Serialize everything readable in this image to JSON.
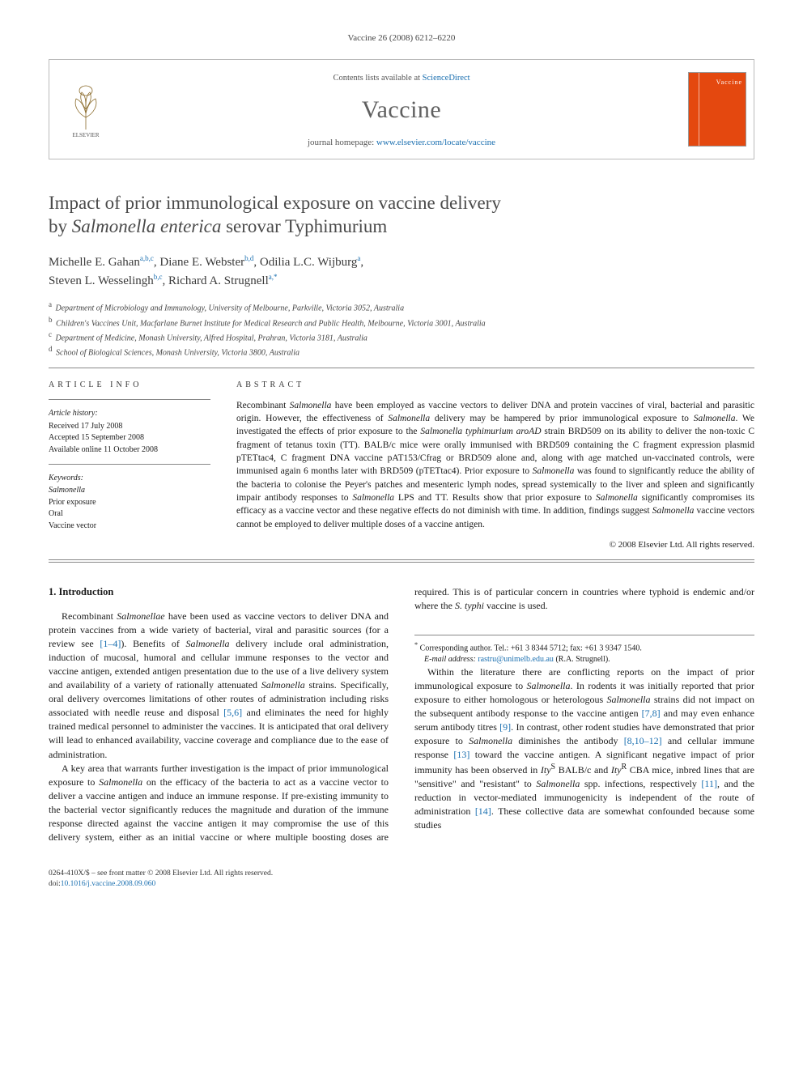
{
  "running_head": "Vaccine 26 (2008) 6212–6220",
  "header": {
    "contents_prefix": "Contents lists available at ",
    "contents_link": "ScienceDirect",
    "journal": "Vaccine",
    "homepage_prefix": "journal homepage: ",
    "homepage_link": "www.elsevier.com/locate/vaccine",
    "publisher_logo_label": "ELSEVIER",
    "cover_label": "Vaccine"
  },
  "title_line1": "Impact of prior immunological exposure on vaccine delivery",
  "title_line2_pre": "by ",
  "title_line2_ital": "Salmonella enterica",
  "title_line2_post": " serovar Typhimurium",
  "authors_html_parts": [
    {
      "name": "Michelle E. Gahan",
      "sup": "a,b,c"
    },
    {
      "name": "Diane E. Webster",
      "sup": "b,d"
    },
    {
      "name": "Odilia L.C. Wijburg",
      "sup": "a"
    },
    {
      "name": "Steven L. Wesselingh",
      "sup": "b,c"
    },
    {
      "name": "Richard A. Strugnell",
      "sup": "a,",
      "star": "*"
    }
  ],
  "affiliations": [
    {
      "key": "a",
      "text": "Department of Microbiology and Immunology, University of Melbourne, Parkville, Victoria 3052, Australia"
    },
    {
      "key": "b",
      "text": "Children's Vaccines Unit, Macfarlane Burnet Institute for Medical Research and Public Health, Melbourne, Victoria 3001, Australia"
    },
    {
      "key": "c",
      "text": "Department of Medicine, Monash University, Alfred Hospital, Prahran, Victoria 3181, Australia"
    },
    {
      "key": "d",
      "text": "School of Biological Sciences, Monash University, Victoria 3800, Australia"
    }
  ],
  "article_info": {
    "heading": "ARTICLE INFO",
    "history_label": "Article history:",
    "received": "Received 17 July 2008",
    "accepted": "Accepted 15 September 2008",
    "online": "Available online 11 October 2008",
    "keywords_label": "Keywords:",
    "keywords": [
      "Salmonella",
      "Prior exposure",
      "Oral",
      "Vaccine vector"
    ]
  },
  "abstract": {
    "heading": "ABSTRACT",
    "text_parts": [
      {
        "t": "Recombinant "
      },
      {
        "t": "Salmonella",
        "i": true
      },
      {
        "t": " have been employed as vaccine vectors to deliver DNA and protein vaccines of viral, bacterial and parasitic origin. However, the effectiveness of "
      },
      {
        "t": "Salmonella",
        "i": true
      },
      {
        "t": " delivery may be hampered by prior immunological exposure to "
      },
      {
        "t": "Salmonella",
        "i": true
      },
      {
        "t": ". We investigated the effects of prior exposure to the "
      },
      {
        "t": "Salmonella typhimurium aroAD",
        "i": true
      },
      {
        "t": " strain BRD509 on its ability to deliver the non-toxic C fragment of tetanus toxin (TT). BALB/c mice were orally immunised with BRD509 containing the C fragment expression plasmid pTETtac4, C fragment DNA vaccine pAT153/Cfrag or BRD509 alone and, along with age matched un-vaccinated controls, were immunised again 6 months later with BRD509 (pTETtac4). Prior exposure to "
      },
      {
        "t": "Salmonella",
        "i": true
      },
      {
        "t": " was found to significantly reduce the ability of the bacteria to colonise the Peyer's patches and mesenteric lymph nodes, spread systemically to the liver and spleen and significantly impair antibody responses to "
      },
      {
        "t": "Salmonella",
        "i": true
      },
      {
        "t": " LPS and TT. Results show that prior exposure to "
      },
      {
        "t": "Salmonella",
        "i": true
      },
      {
        "t": " significantly compromises its efficacy as a vaccine vector and these negative effects do not diminish with time. In addition, findings suggest "
      },
      {
        "t": "Salmonella",
        "i": true
      },
      {
        "t": " vaccine vectors cannot be employed to deliver multiple doses of a vaccine antigen."
      }
    ],
    "copyright": "© 2008 Elsevier Ltd. All rights reserved."
  },
  "intro": {
    "heading": "1. Introduction",
    "para1": [
      {
        "t": "Recombinant "
      },
      {
        "t": "Salmonellae",
        "i": true
      },
      {
        "t": " have been used as vaccine vectors to deliver DNA and protein vaccines from a wide variety of bacterial, viral and parasitic sources (for a review see "
      },
      {
        "ref": "[1–4]"
      },
      {
        "t": "). Benefits of "
      },
      {
        "t": "Salmonella",
        "i": true
      },
      {
        "t": " delivery include oral administration, induction of mucosal, humoral and cellular immune responses to the vector and vaccine antigen, extended antigen presentation due to the use of a live delivery system and availability of a variety of rationally attenuated "
      },
      {
        "t": "Salmonella",
        "i": true
      },
      {
        "t": " strains. Specifically, oral delivery overcomes limitations of other routes of administration including risks associated with needle reuse and disposal "
      },
      {
        "ref": "[5,6]"
      },
      {
        "t": " and eliminates the need for highly trained medical personnel to administer the vaccines. It is anticipated that oral delivery will lead to enhanced availability, vaccine coverage and compliance due to the ease of administration."
      }
    ],
    "para2": [
      {
        "t": "A key area that warrants further investigation is the impact of prior immunological exposure to "
      },
      {
        "t": "Salmonella",
        "i": true
      },
      {
        "t": " on the efficacy of the bacteria to act as a vaccine vector to deliver a vaccine antigen and induce an immune response. If pre-existing immunity to the bacterial vector significantly reduces the magnitude and duration of the immune response directed against the vaccine antigen it may compromise the use of this delivery system, either as an initial vaccine or where multiple boosting doses are required. This is of particular concern in countries where typhoid is endemic and/or where the "
      },
      {
        "t": "S. typhi",
        "i": true
      },
      {
        "t": " vaccine is used."
      }
    ],
    "para3": [
      {
        "t": "Within the literature there are conflicting reports on the impact of prior immunological exposure to "
      },
      {
        "t": "Salmonella",
        "i": true
      },
      {
        "t": ". In rodents it was initially reported that prior exposure to either homologous or heterologous "
      },
      {
        "t": "Salmonella",
        "i": true
      },
      {
        "t": " strains did not impact on the subsequent antibody response to the vaccine antigen "
      },
      {
        "ref": "[7,8]"
      },
      {
        "t": " and may even enhance serum antibody titres "
      },
      {
        "ref": "[9]"
      },
      {
        "t": ". In contrast, other rodent studies have demonstrated that prior exposure to "
      },
      {
        "t": "Salmonella",
        "i": true
      },
      {
        "t": " diminishes the antibody "
      },
      {
        "ref": "[8,10–12]"
      },
      {
        "t": " and cellular immune response "
      },
      {
        "ref": "[13]"
      },
      {
        "t": " toward the vaccine antigen. A significant negative impact of prior immunity has been observed in "
      },
      {
        "t": "Ity",
        "i": true
      },
      {
        "supS": "S"
      },
      {
        "t": " BALB/c and "
      },
      {
        "t": "Ity",
        "i": true
      },
      {
        "supR": "R"
      },
      {
        "t": " CBA mice, inbred lines that are \"sensitive\" and \"resistant\" to "
      },
      {
        "t": "Salmonella",
        "i": true
      },
      {
        "t": " spp. infections, respectively "
      },
      {
        "ref": "[11]"
      },
      {
        "t": ", and the reduction in vector-mediated immunogenicity is independent of the route of administration "
      },
      {
        "ref": "[14]"
      },
      {
        "t": ". These collective data are somewhat confounded because some studies"
      }
    ]
  },
  "corresponding": {
    "label": "Corresponding author. Tel.: +61 3 8344 5712; fax: +61 3 9347 1540.",
    "email_label": "E-mail address: ",
    "email": "rastru@unimelb.edu.au",
    "email_who": " (R.A. Strugnell)."
  },
  "footer": {
    "line1": "0264-410X/$ – see front matter © 2008 Elsevier Ltd. All rights reserved.",
    "doi_prefix": "doi:",
    "doi": "10.1016/j.vaccine.2008.09.060"
  },
  "colors": {
    "link": "#1a6fb0",
    "cover": "#e4480f",
    "rule": "#888888",
    "title_gray": "#4a4a4a"
  }
}
